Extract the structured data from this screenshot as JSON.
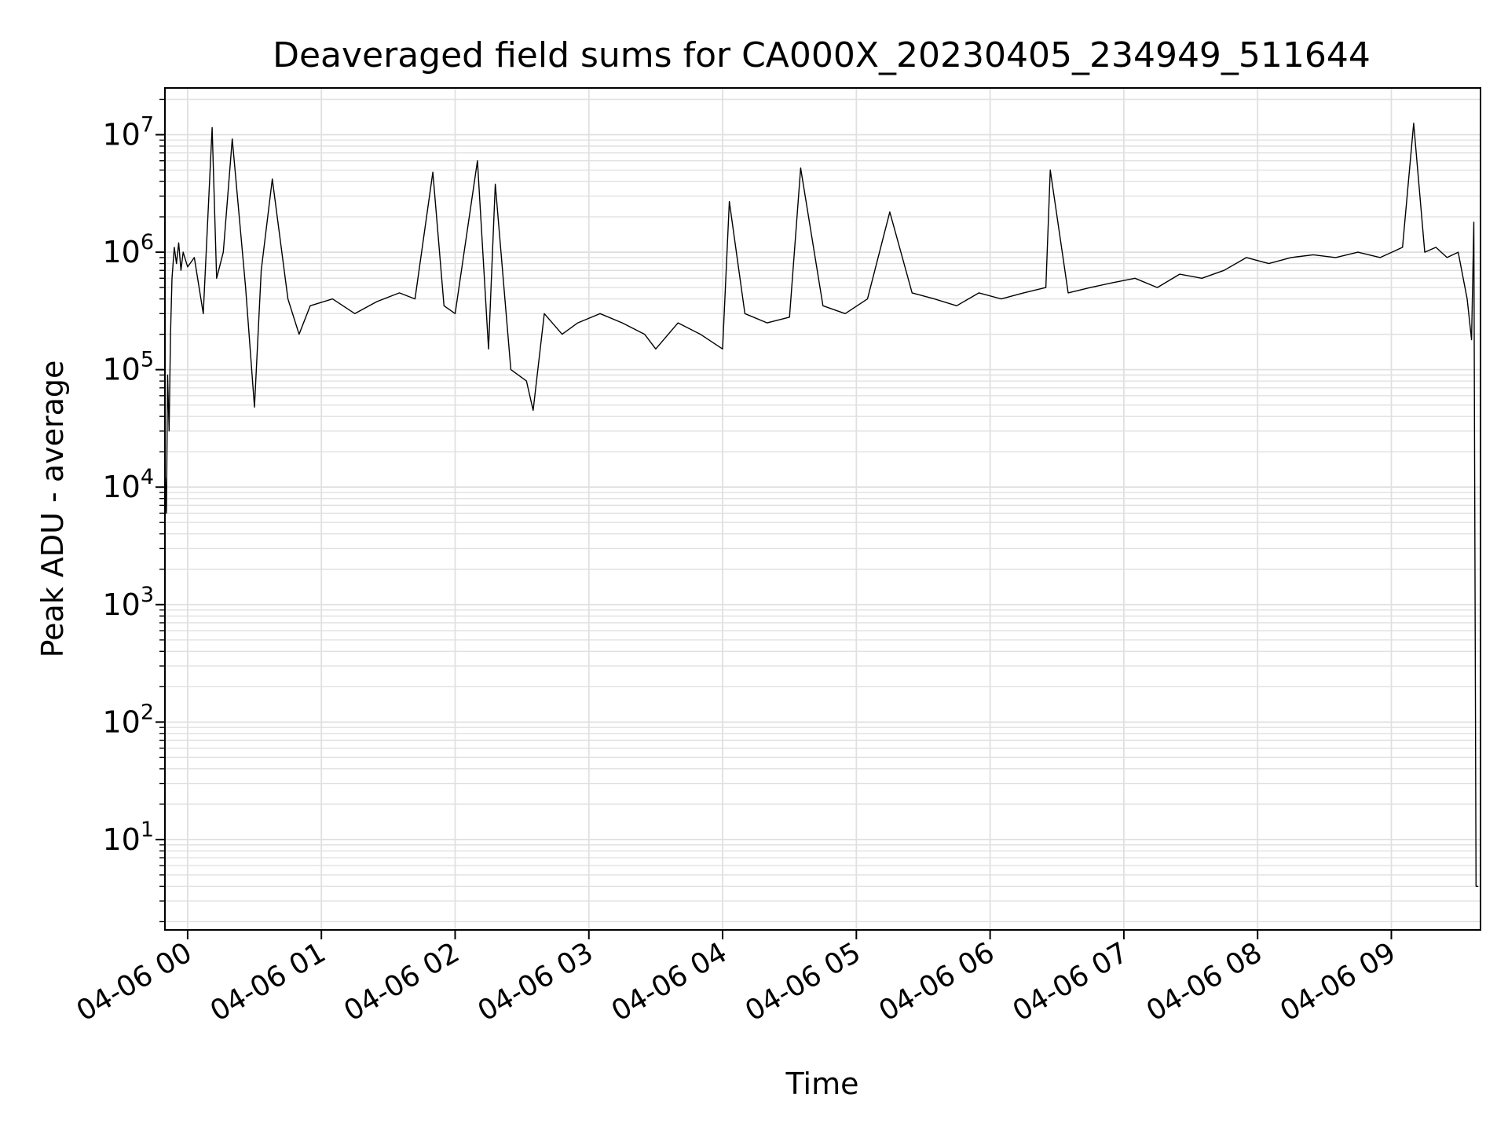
{
  "chart_data": {
    "type": "line",
    "title": "Deaveraged field sums for CA000X_20230405_234949_511644",
    "xlabel": "Time",
    "ylabel": "Peak ADU - average",
    "y_scale": "log",
    "ylim": [
      1.7,
      25000000
    ],
    "xlim": [
      "2023-04-05 23:49:49",
      "2023-04-06 09:40:00"
    ],
    "grid": true,
    "line_color": "#000000",
    "grid_color": "#e0e0e0",
    "x_ticks": [
      {
        "value": "2023-04-06 00:00",
        "label": "04-06 00"
      },
      {
        "value": "2023-04-06 01:00",
        "label": "04-06 01"
      },
      {
        "value": "2023-04-06 02:00",
        "label": "04-06 02"
      },
      {
        "value": "2023-04-06 03:00",
        "label": "04-06 03"
      },
      {
        "value": "2023-04-06 04:00",
        "label": "04-06 04"
      },
      {
        "value": "2023-04-06 05:00",
        "label": "04-06 05"
      },
      {
        "value": "2023-04-06 06:00",
        "label": "04-06 06"
      },
      {
        "value": "2023-04-06 07:00",
        "label": "04-06 07"
      },
      {
        "value": "2023-04-06 08:00",
        "label": "04-06 08"
      },
      {
        "value": "2023-04-06 09:00",
        "label": "04-06 09"
      }
    ],
    "y_ticks": [
      {
        "value": 10,
        "base": "10",
        "exp": "1"
      },
      {
        "value": 100,
        "base": "10",
        "exp": "2"
      },
      {
        "value": 1000,
        "base": "10",
        "exp": "3"
      },
      {
        "value": 10000,
        "base": "10",
        "exp": "4"
      },
      {
        "value": 100000,
        "base": "10",
        "exp": "5"
      },
      {
        "value": 1000000,
        "base": "10",
        "exp": "6"
      },
      {
        "value": 10000000,
        "base": "10",
        "exp": "7"
      }
    ],
    "series": [
      {
        "x": [
          "2023-04-05 23:50:00",
          "2023-04-05 23:50:30",
          "2023-04-05 23:51:00",
          "2023-04-05 23:51:40",
          "2023-04-05 23:52:20",
          "2023-04-05 23:53:00",
          "2023-04-05 23:54:00",
          "2023-04-05 23:55:00",
          "2023-04-05 23:56:00",
          "2023-04-05 23:57:00",
          "2023-04-05 23:58:00",
          "2023-04-06 00:00:00",
          "2023-04-06 00:03:00",
          "2023-04-06 00:07:00",
          "2023-04-06 00:11:00",
          "2023-04-06 00:13:00",
          "2023-04-06 00:16:00",
          "2023-04-06 00:20:00",
          "2023-04-06 00:26:00",
          "2023-04-06 00:30:00",
          "2023-04-06 00:33:00",
          "2023-04-06 00:38:00",
          "2023-04-06 00:45:00",
          "2023-04-06 00:50:00",
          "2023-04-06 00:55:00",
          "2023-04-06 01:05:00",
          "2023-04-06 01:15:00",
          "2023-04-06 01:25:00",
          "2023-04-06 01:35:00",
          "2023-04-06 01:42:00",
          "2023-04-06 01:50:00",
          "2023-04-06 01:55:00",
          "2023-04-06 02:00:00",
          "2023-04-06 02:10:00",
          "2023-04-06 02:15:00",
          "2023-04-06 02:18:00",
          "2023-04-06 02:25:00",
          "2023-04-06 02:32:00",
          "2023-04-06 02:35:00",
          "2023-04-06 02:40:00",
          "2023-04-06 02:48:00",
          "2023-04-06 02:55:00",
          "2023-04-06 03:05:00",
          "2023-04-06 03:15:00",
          "2023-04-06 03:25:00",
          "2023-04-06 03:30:00",
          "2023-04-06 03:40:00",
          "2023-04-06 03:50:00",
          "2023-04-06 04:00:00",
          "2023-04-06 04:03:00",
          "2023-04-06 04:10:00",
          "2023-04-06 04:20:00",
          "2023-04-06 04:30:00",
          "2023-04-06 04:35:00",
          "2023-04-06 04:45:00",
          "2023-04-06 04:55:00",
          "2023-04-06 05:05:00",
          "2023-04-06 05:15:00",
          "2023-04-06 05:25:00",
          "2023-04-06 05:35:00",
          "2023-04-06 05:45:00",
          "2023-04-06 05:55:00",
          "2023-04-06 06:05:00",
          "2023-04-06 06:15:00",
          "2023-04-06 06:25:00",
          "2023-04-06 06:27:00",
          "2023-04-06 06:35:00",
          "2023-04-06 06:45:00",
          "2023-04-06 06:55:00",
          "2023-04-06 07:05:00",
          "2023-04-06 07:15:00",
          "2023-04-06 07:25:00",
          "2023-04-06 07:35:00",
          "2023-04-06 07:45:00",
          "2023-04-06 07:55:00",
          "2023-04-06 08:05:00",
          "2023-04-06 08:15:00",
          "2023-04-06 08:25:00",
          "2023-04-06 08:35:00",
          "2023-04-06 08:45:00",
          "2023-04-06 08:55:00",
          "2023-04-06 09:05:00",
          "2023-04-06 09:10:00",
          "2023-04-06 09:15:00",
          "2023-04-06 09:20:00",
          "2023-04-06 09:25:00",
          "2023-04-06 09:30:00",
          "2023-04-06 09:34:00",
          "2023-04-06 09:36:00",
          "2023-04-06 09:37:00",
          "2023-04-06 09:38:00",
          "2023-04-06 09:39:00"
        ],
        "y": [
          12000,
          6000,
          90000,
          30000,
          200000,
          600000,
          1100000,
          800000,
          1200000,
          700000,
          1000000,
          750000,
          900000,
          300000,
          11500000,
          600000,
          1000000,
          9200000,
          500000,
          48000,
          700000,
          4200000,
          400000,
          200000,
          350000,
          400000,
          300000,
          380000,
          450000,
          400000,
          4800000,
          350000,
          300000,
          6000000,
          150000,
          3800000,
          100000,
          80000,
          45000,
          300000,
          200000,
          250000,
          300000,
          250000,
          200000,
          150000,
          250000,
          200000,
          150000,
          2700000,
          300000,
          250000,
          280000,
          5200000,
          350000,
          300000,
          400000,
          2200000,
          450000,
          400000,
          350000,
          450000,
          400000,
          450000,
          500000,
          5000000,
          450000,
          500000,
          550000,
          600000,
          500000,
          650000,
          600000,
          700000,
          900000,
          800000,
          900000,
          950000,
          900000,
          1000000,
          900000,
          1100000,
          12500000,
          1000000,
          1100000,
          900000,
          1000000,
          400000,
          180000,
          1800000,
          4,
          4
        ]
      }
    ]
  }
}
